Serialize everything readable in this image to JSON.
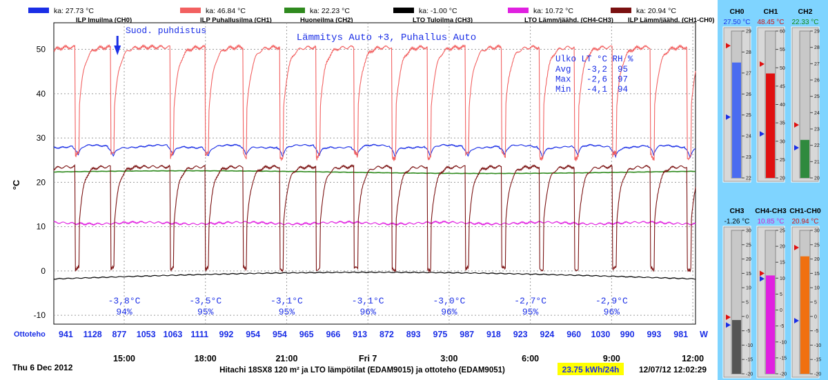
{
  "chart_data": {
    "type": "line",
    "annotation_top": "Suod. puhdistus",
    "subtitle": "Lämmitys Auto +3, Puhallus Auto",
    "ylabel": "°C",
    "ylim": [
      -12,
      56
    ],
    "yticks": [
      -10,
      0,
      10,
      20,
      30,
      40,
      50
    ],
    "xlim_hours": [
      12.4,
      36.1
    ],
    "xtick_hours": [
      15,
      18,
      21,
      24,
      27,
      30,
      33,
      36
    ],
    "xtick_labels": [
      "15:00",
      "18:00",
      "21:00",
      "Fri 7",
      "3:00",
      "6:00",
      "9:00",
      "12:00"
    ],
    "date_label": "Thu 6 Dec 2012",
    "footer_title": "Hitachi 18SX8 120 m² ja LTO lämpötilat (EDAM9015) ja ottoteho (EDAM9051)",
    "energy_label": "23.75 kWh/24h",
    "timestamp": "12/07/12 12:02:29",
    "legend": [
      {
        "label": "ILP Imuilma (CH0)",
        "avg": "ka: 27.73 °C",
        "color": "#1a2ee6"
      },
      {
        "label": "ILP Puhallusilma (CH1)",
        "avg": "ka: 46.84 °C",
        "color": "#f26060"
      },
      {
        "label": "Huoneilma (CH2)",
        "avg": "ka: 22.23 °C",
        "color": "#2f8a1e"
      },
      {
        "label": "LTO Tuloilma (CH3)",
        "avg": "ka: -1.00 °C",
        "color": "#000000"
      },
      {
        "label": "LTO Lämm/jäähd. (CH4-CH3)",
        "avg": "ka: 10.72 °C",
        "color": "#e020e0"
      },
      {
        "label": "ILP Lämm/jäähd. (CH1-CH0)",
        "avg": "ka: 20.94 °C",
        "color": "#7a1010"
      }
    ],
    "series": [
      {
        "name": "ILP Imuilma (CH0)",
        "channel": "CH0",
        "base": 28.1,
        "dip": 26.2,
        "color": "#1a2ee6"
      },
      {
        "name": "ILP Puhallusilma (CH1)",
        "channel": "CH1",
        "base": 50.5,
        "dip": 28.0,
        "color": "#f26060"
      },
      {
        "name": "Huoneilma (CH2)",
        "channel": "CH2",
        "base": 22.3,
        "color": "#2f8a1e"
      },
      {
        "name": "LTO Tuloilma (CH3)",
        "channel": "CH3",
        "base": -1.2,
        "color": "#000000"
      },
      {
        "name": "LTO Lämm/jäähd. (CH4-CH3)",
        "channel": "CH4-CH3",
        "base": 10.8,
        "color": "#e020e0"
      },
      {
        "name": "ILP Lämm/jäähd. (CH1-CH0)",
        "channel": "CH1-CH0",
        "base": 22.5,
        "dip": 0.5,
        "color": "#7a1010"
      }
    ],
    "defrost_hours": [
      13.25,
      14.55,
      16.75,
      18.05,
      19.45,
      20.8,
      22.15,
      23.55,
      24.95,
      26.25,
      27.65,
      29.0,
      30.4,
      31.7,
      33.1,
      34.5,
      35.85
    ],
    "defrost_marker_hour": 14.75,
    "outdoor_stats": {
      "header": "Ulko LT °C RH %",
      "rows": [
        {
          "label": "Avg",
          "temp": "-3,2",
          "rh": "95"
        },
        {
          "label": "Max",
          "temp": "-2,6",
          "rh": "97"
        },
        {
          "label": "Min",
          "temp": "-4,1",
          "rh": "94"
        }
      ]
    },
    "outdoor_readings": [
      {
        "hour": 15.0,
        "temp": "-3,8°C",
        "rh": "94%"
      },
      {
        "hour": 18.0,
        "temp": "-3,5°C",
        "rh": "95%"
      },
      {
        "hour": 21.0,
        "temp": "-3,1°C",
        "rh": "95%"
      },
      {
        "hour": 24.0,
        "temp": "-3,1°C",
        "rh": "96%"
      },
      {
        "hour": 27.0,
        "temp": "-3,0°C",
        "rh": "96%"
      },
      {
        "hour": 30.0,
        "temp": "-2,7°C",
        "rh": "95%"
      },
      {
        "hour": 33.0,
        "temp": "-2,9°C",
        "rh": "96%"
      }
    ],
    "power": {
      "label": "Ottoteho",
      "unit": "W",
      "values": [
        941,
        1128,
        877,
        1053,
        1063,
        1111,
        992,
        954,
        954,
        965,
        966,
        913,
        872,
        893,
        975,
        987,
        918,
        923,
        924,
        960,
        1030,
        990,
        993,
        981
      ]
    }
  },
  "gauges": [
    {
      "name": "CH0",
      "value_text": "27.50 °C",
      "value": 27.5,
      "min": 22,
      "max": 29,
      "ticks": [
        22,
        23,
        24,
        25,
        26,
        27,
        28,
        29
      ],
      "fill": "#4a6cf0",
      "value_color": "#1a2ee6",
      "red_marker": 28.3,
      "blue_marker": 24.9
    },
    {
      "name": "CH1",
      "value_text": "48.45 °C",
      "value": 48.45,
      "min": 20,
      "max": 60,
      "ticks": [
        20,
        25,
        30,
        35,
        40,
        45,
        50,
        55,
        60
      ],
      "fill": "#e01010",
      "value_color": "#d01010",
      "red_marker": 51.0,
      "blue_marker": 32.0
    },
    {
      "name": "CH2",
      "value_text": "22.33 °C",
      "value": 22.33,
      "min": 20,
      "max": 29,
      "ticks": [
        20,
        21,
        22,
        23,
        24,
        25,
        26,
        27,
        28,
        29
      ],
      "fill": "#2f8a3e",
      "value_color": "#118811",
      "red_marker": 23.25,
      "blue_marker": 21.85
    },
    {
      "name": "CH3",
      "value_text": "-1.26 °C",
      "value": -1.26,
      "min": -20,
      "max": 30,
      "ticks": [
        -20,
        -15,
        -10,
        -5,
        0,
        5,
        10,
        15,
        20,
        25,
        30
      ],
      "fill": "#555555",
      "value_color": "#000000",
      "red_marker": -0.3,
      "blue_marker": -3.0
    },
    {
      "name": "CH4-CH3",
      "value_text": "10.85 °C",
      "value": 10.85,
      "min": -20,
      "max": 25,
      "ticks": [
        -20,
        -15,
        -10,
        -5,
        0,
        5,
        10,
        15,
        20,
        25
      ],
      "fill": "#e020e0",
      "value_color": "#d020d0",
      "red_marker": 11.5,
      "blue_marker": 9.8
    },
    {
      "name": "CH1-CH0",
      "value_text": "20.94 °C",
      "value": 20.94,
      "min": -20,
      "max": 30,
      "ticks": [
        -20,
        -15,
        -10,
        -5,
        0,
        5,
        10,
        15,
        20,
        25,
        30
      ],
      "fill": "#f07010",
      "value_color": "#d01010",
      "red_marker": 24.0,
      "blue_marker": -1.5
    }
  ]
}
